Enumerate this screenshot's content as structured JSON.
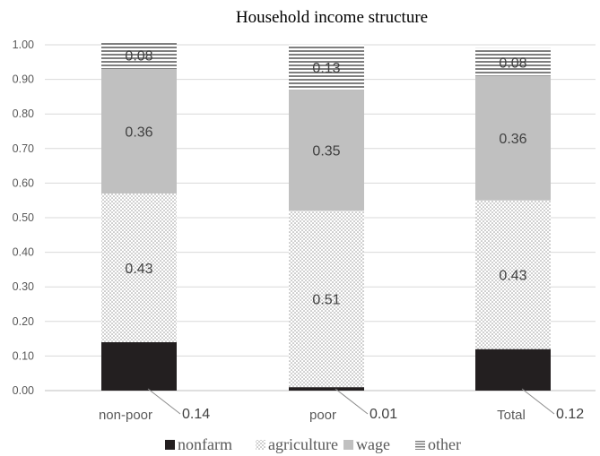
{
  "chart_data": {
    "type": "bar",
    "stacked": true,
    "title": "Household income structure",
    "xlabel": "",
    "ylabel": "",
    "ylim": [
      0,
      1
    ],
    "yticks": [
      "0.00",
      "0.10",
      "0.20",
      "0.30",
      "0.40",
      "0.50",
      "0.60",
      "0.70",
      "0.80",
      "0.90",
      "1.00"
    ],
    "grid": true,
    "legend_position": "bottom",
    "categories": [
      "non-poor",
      "poor",
      "Total"
    ],
    "series": [
      {
        "name": "nonfarm",
        "values": [
          0.14,
          0.01,
          0.12
        ],
        "labels": [
          "0.14",
          "0.01",
          "0.12"
        ],
        "color": "#231f20",
        "pattern": "solid"
      },
      {
        "name": "agriculture",
        "values": [
          0.43,
          0.51,
          0.43
        ],
        "labels": [
          "0.43",
          "0.51",
          "0.43"
        ],
        "color": "#bfbfbf",
        "pattern": "dots"
      },
      {
        "name": "wage",
        "values": [
          0.36,
          0.35,
          0.36
        ],
        "labels": [
          "0.36",
          "0.35",
          "0.36"
        ],
        "color": "#c0c0c0",
        "pattern": "solid"
      },
      {
        "name": "other",
        "values": [
          0.08,
          0.13,
          0.08
        ],
        "labels": [
          "0.08",
          "0.13",
          "0.08"
        ],
        "color": "#7f7f7f",
        "pattern": "horizontal-lines"
      }
    ]
  }
}
